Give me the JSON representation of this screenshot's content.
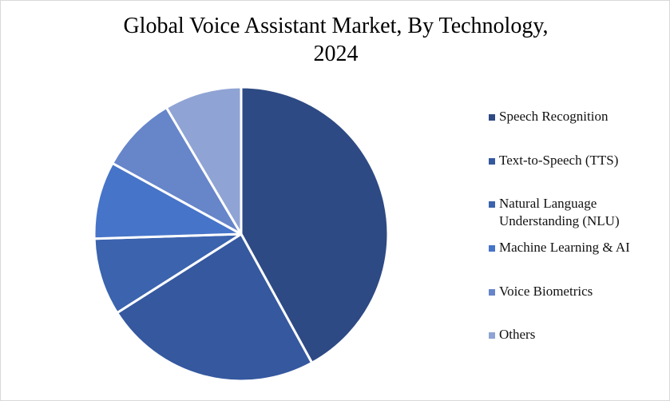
{
  "chart_data": {
    "type": "pie",
    "title": [
      "Global Voice Assistant Market, By Technology,",
      "2024"
    ],
    "categories": [
      "Speech Recognition",
      "Text-to-Speech (TTS)",
      "Natural Language Understanding (NLU)",
      "Machine Learning & AI",
      "Voice Biometrics",
      "Others"
    ],
    "legend_labels": [
      [
        "Speech Recognition"
      ],
      [
        "Text-to-Speech (TTS)"
      ],
      [
        "Natural Language",
        "Understanding (NLU)"
      ],
      [
        "Machine Learning & AI"
      ],
      [
        "Voice Biometrics"
      ],
      [
        "Others"
      ]
    ],
    "values": [
      42,
      24,
      8.5,
      8.5,
      8.5,
      8.5
    ],
    "colors": [
      "#2E4A84",
      "#35589F",
      "#3B63AE",
      "#4674C8",
      "#6785C9",
      "#8FA4D4"
    ],
    "legend_position": "right"
  }
}
